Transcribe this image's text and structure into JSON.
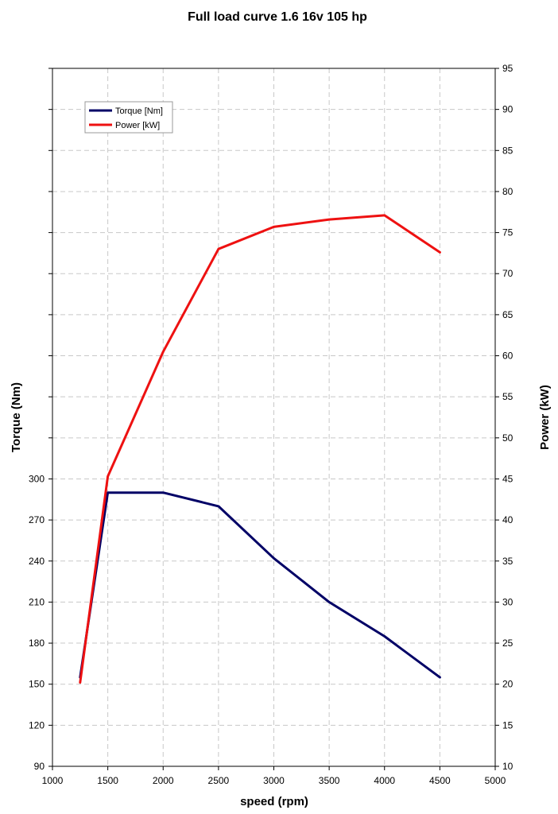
{
  "chart_data": {
    "type": "line",
    "title": "Full load curve 1.6 16v 105 hp",
    "xlabel": "speed (rpm)",
    "ylabel": "Torque (Nm)",
    "y2label": "Power (kW)",
    "xlim": [
      1000,
      5000
    ],
    "xticks": [
      1000,
      1500,
      2000,
      2500,
      3000,
      3500,
      4000,
      4500,
      5000
    ],
    "ylim": [
      90,
      300
    ],
    "yticks": [
      90,
      120,
      150,
      180,
      210,
      240,
      270,
      300
    ],
    "y2lim": [
      10,
      95
    ],
    "y2ticks": [
      10,
      15,
      20,
      25,
      30,
      35,
      40,
      45,
      50,
      55,
      60,
      65,
      70,
      75,
      80,
      85,
      90,
      95
    ],
    "grid": true,
    "legend_position": "top-left",
    "series": [
      {
        "name": "Torque [Nm]",
        "axis": "left",
        "color": "#000066",
        "x": [
          1250,
          1500,
          2000,
          2500,
          3000,
          3500,
          4000,
          4500
        ],
        "values": [
          155,
          290,
          290,
          280,
          242,
          210,
          185,
          155
        ]
      },
      {
        "name": "Power [kW]",
        "axis": "right",
        "color": "#ee1111",
        "x": [
          1250,
          1500,
          2000,
          2500,
          3000,
          3500,
          4000,
          4500
        ],
        "values": [
          20.2,
          45.3,
          60.5,
          73,
          75.7,
          76.6,
          77.1,
          72.6
        ]
      }
    ]
  }
}
